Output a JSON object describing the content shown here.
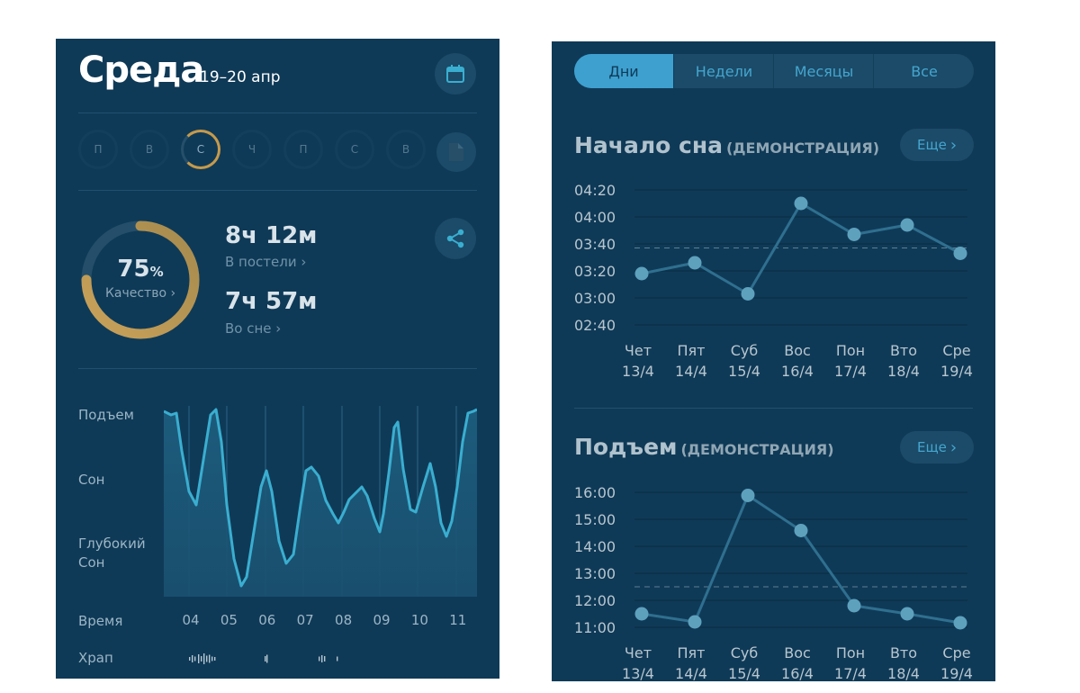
{
  "sleep_day": {
    "title": "Среда",
    "date_range": "19–20 апр",
    "icons": {
      "calendar": "calendar-icon",
      "report": "document-icon",
      "share": "share-icon"
    },
    "weekdays": [
      "П",
      "В",
      "С",
      "Ч",
      "П",
      "С",
      "В"
    ],
    "active_weekday_index": 2,
    "quality": {
      "value": "75",
      "unit": "%",
      "label": "Качество ›",
      "fraction": 0.75
    },
    "in_bed": {
      "value": "8ч 12м",
      "label": "В постели ›"
    },
    "asleep": {
      "value": "7ч 57м",
      "label": "Во сне ›"
    },
    "hypnogram": {
      "levels": [
        "Подъем",
        "Сон",
        "Глубокий Сон"
      ],
      "time_label": "Время",
      "hours": [
        "04",
        "05",
        "06",
        "07",
        "08",
        "09",
        "10",
        "11"
      ],
      "snore_label": "Храп"
    },
    "colors": {
      "panel": "#0f3a57",
      "accent_gold": "#c59a4c",
      "line_blue": "#3aaed0"
    }
  },
  "trends": {
    "tabs": [
      "Дни",
      "Недели",
      "Месяцы",
      "Все"
    ],
    "active_tab": 0,
    "more_label": "Еще",
    "chart_data": [
      {
        "type": "line",
        "title": "Начало сна",
        "subtitle": "(ДЕМОНСТРАЦИЯ)",
        "y_ticks": [
          "04:20",
          "04:00",
          "03:40",
          "03:20",
          "03:00",
          "02:40"
        ],
        "ylim": [
          "02:40",
          "04:20"
        ],
        "categories": [
          "Чет 13/4",
          "Пят 14/4",
          "Суб 15/4",
          "Вос 16/4",
          "Пон 17/4",
          "Вто 18/4",
          "Сре 19/4"
        ],
        "x_days": [
          "Чет",
          "Пят",
          "Суб",
          "Вос",
          "Пон",
          "Вто",
          "Сре"
        ],
        "x_dates": [
          "13/4",
          "14/4",
          "15/4",
          "16/4",
          "17/4",
          "18/4",
          "19/4"
        ],
        "values": [
          "03:18",
          "03:26",
          "03:03",
          "04:10",
          "03:47",
          "03:54",
          "03:33"
        ],
        "average": "03:37",
        "grid": true
      },
      {
        "type": "line",
        "title": "Подъем",
        "subtitle": "(ДЕМОНСТРАЦИЯ)",
        "y_ticks": [
          "16:00",
          "15:00",
          "14:00",
          "13:00",
          "12:00",
          "11:00"
        ],
        "ylim": [
          "11:00",
          "16:00"
        ],
        "categories": [
          "Чет 13/4",
          "Пят 14/4",
          "Суб 15/4",
          "Вос 16/4",
          "Пон 17/4",
          "Вто 18/4",
          "Сре 19/4"
        ],
        "x_days": [
          "Чет",
          "Пят",
          "Суб",
          "Вос",
          "Пон",
          "Вто",
          "Сре"
        ],
        "x_dates": [
          "13/4",
          "14/4",
          "15/4",
          "16/4",
          "17/4",
          "18/4",
          "19/4"
        ],
        "values": [
          "11:30",
          "11:12",
          "15:53",
          "14:35",
          "11:48",
          "11:30",
          "11:10"
        ],
        "average": "12:30",
        "grid": true
      }
    ]
  }
}
